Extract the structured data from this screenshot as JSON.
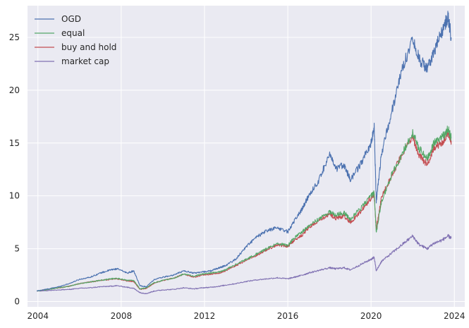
{
  "chart_data": {
    "type": "line",
    "title": "",
    "xlabel": "",
    "ylabel": "",
    "xlim": [
      2003.5,
      2024.5
    ],
    "ylim": [
      -0.5,
      28
    ],
    "x_ticks": [
      2004,
      2008,
      2012,
      2016,
      2020,
      2024
    ],
    "x_tick_labels": [
      "2004",
      "2008",
      "2012",
      "2016",
      "2020",
      "2024"
    ],
    "y_ticks": [
      0,
      5,
      10,
      15,
      20,
      25
    ],
    "y_tick_labels": [
      "0",
      "5",
      "10",
      "15",
      "20",
      "25"
    ],
    "grid": true,
    "legend_position": "top-left",
    "background": "#eaeaf2",
    "series": [
      {
        "name": "OGD",
        "color": "#4c72b0",
        "x": [
          2003.95,
          2004.5,
          2005.0,
          2005.5,
          2006.0,
          2006.5,
          2007.0,
          2007.5,
          2007.8,
          2008.3,
          2008.6,
          2008.9,
          2009.2,
          2009.6,
          2010.0,
          2010.5,
          2011.0,
          2011.5,
          2011.9,
          2012.3,
          2012.7,
          2013.0,
          2013.5,
          2014.0,
          2014.5,
          2015.0,
          2015.5,
          2016.0,
          2016.3,
          2016.7,
          2017.0,
          2017.5,
          2018.0,
          2018.3,
          2018.7,
          2019.0,
          2019.5,
          2020.0,
          2020.15,
          2020.25,
          2020.5,
          2021.0,
          2021.5,
          2022.0,
          2022.3,
          2022.7,
          2023.0,
          2023.4,
          2023.7,
          2023.85
        ],
        "y": [
          1.0,
          1.2,
          1.4,
          1.7,
          2.1,
          2.3,
          2.7,
          3.0,
          3.1,
          2.7,
          2.9,
          1.5,
          1.4,
          2.1,
          2.3,
          2.5,
          2.9,
          2.7,
          2.8,
          2.9,
          3.2,
          3.4,
          4.0,
          5.2,
          6.1,
          6.7,
          7.0,
          6.6,
          7.6,
          8.8,
          10.0,
          11.5,
          14.0,
          12.5,
          13.0,
          11.5,
          13.0,
          15.0,
          16.5,
          9.5,
          14.0,
          18.0,
          22.0,
          25.0,
          23.0,
          22.0,
          23.5,
          25.5,
          27.0,
          25.0
        ]
      },
      {
        "name": "equal",
        "color": "#55a868",
        "x": [
          2003.95,
          2004.5,
          2005.0,
          2005.5,
          2006.0,
          2006.5,
          2007.0,
          2007.5,
          2007.8,
          2008.3,
          2008.6,
          2008.9,
          2009.2,
          2009.6,
          2010.0,
          2010.5,
          2011.0,
          2011.5,
          2011.9,
          2012.3,
          2012.7,
          2013.0,
          2013.5,
          2014.0,
          2014.5,
          2015.0,
          2015.5,
          2016.0,
          2016.3,
          2016.7,
          2017.0,
          2017.5,
          2018.0,
          2018.3,
          2018.7,
          2019.0,
          2019.5,
          2020.0,
          2020.15,
          2020.25,
          2020.5,
          2021.0,
          2021.5,
          2022.0,
          2022.3,
          2022.7,
          2023.0,
          2023.4,
          2023.7,
          2023.85
        ],
        "y": [
          1.0,
          1.15,
          1.3,
          1.45,
          1.7,
          1.85,
          2.0,
          2.15,
          2.2,
          2.0,
          2.0,
          1.2,
          1.3,
          1.8,
          2.0,
          2.2,
          2.6,
          2.4,
          2.6,
          2.7,
          2.8,
          3.0,
          3.5,
          4.0,
          4.5,
          5.0,
          5.5,
          5.3,
          6.0,
          6.6,
          7.2,
          7.8,
          8.5,
          8.2,
          8.4,
          7.8,
          8.8,
          10.0,
          10.3,
          6.5,
          9.5,
          12.0,
          14.0,
          16.0,
          14.5,
          13.5,
          15.0,
          15.5,
          16.3,
          15.5
        ]
      },
      {
        "name": "buy and hold",
        "color": "#c44e52",
        "x": [
          2003.95,
          2004.5,
          2005.0,
          2005.5,
          2006.0,
          2006.5,
          2007.0,
          2007.5,
          2007.8,
          2008.3,
          2008.6,
          2008.9,
          2009.2,
          2009.6,
          2010.0,
          2010.5,
          2011.0,
          2011.5,
          2011.9,
          2012.3,
          2012.7,
          2013.0,
          2013.5,
          2014.0,
          2014.5,
          2015.0,
          2015.5,
          2016.0,
          2016.3,
          2016.7,
          2017.0,
          2017.5,
          2018.0,
          2018.3,
          2018.7,
          2019.0,
          2019.5,
          2020.0,
          2020.15,
          2020.25,
          2020.5,
          2021.0,
          2021.5,
          2022.0,
          2022.3,
          2022.7,
          2023.0,
          2023.4,
          2023.7,
          2023.85
        ],
        "y": [
          1.0,
          1.15,
          1.3,
          1.45,
          1.7,
          1.85,
          2.0,
          2.1,
          2.15,
          1.95,
          1.9,
          1.15,
          1.25,
          1.75,
          2.0,
          2.2,
          2.6,
          2.3,
          2.5,
          2.6,
          2.7,
          2.9,
          3.4,
          3.9,
          4.4,
          4.9,
          5.4,
          5.2,
          5.8,
          6.3,
          7.0,
          7.6,
          8.3,
          7.9,
          8.1,
          7.5,
          8.5,
          9.8,
          10.2,
          6.8,
          9.8,
          12.0,
          14.0,
          15.6,
          13.8,
          13.0,
          14.5,
          15.0,
          16.0,
          15.2
        ]
      },
      {
        "name": "market cap",
        "color": "#8172b3",
        "x": [
          2003.95,
          2004.5,
          2005.0,
          2005.5,
          2006.0,
          2006.5,
          2007.0,
          2007.5,
          2007.8,
          2008.3,
          2008.6,
          2008.9,
          2009.2,
          2009.6,
          2010.0,
          2010.5,
          2011.0,
          2011.5,
          2011.9,
          2012.3,
          2012.7,
          2013.0,
          2013.5,
          2014.0,
          2014.5,
          2015.0,
          2015.5,
          2016.0,
          2016.3,
          2016.7,
          2017.0,
          2017.5,
          2018.0,
          2018.3,
          2018.7,
          2019.0,
          2019.5,
          2020.0,
          2020.15,
          2020.25,
          2020.5,
          2021.0,
          2021.5,
          2022.0,
          2022.3,
          2022.7,
          2023.0,
          2023.4,
          2023.7,
          2023.85
        ],
        "y": [
          1.0,
          1.05,
          1.1,
          1.15,
          1.25,
          1.3,
          1.4,
          1.45,
          1.5,
          1.35,
          1.25,
          0.85,
          0.75,
          1.0,
          1.1,
          1.15,
          1.3,
          1.2,
          1.3,
          1.35,
          1.45,
          1.55,
          1.7,
          1.9,
          2.05,
          2.15,
          2.25,
          2.15,
          2.3,
          2.5,
          2.7,
          2.95,
          3.2,
          3.1,
          3.2,
          3.0,
          3.5,
          4.0,
          4.2,
          2.9,
          3.8,
          4.6,
          5.4,
          6.2,
          5.4,
          5.0,
          5.5,
          5.8,
          6.2,
          6.0
        ]
      }
    ]
  }
}
